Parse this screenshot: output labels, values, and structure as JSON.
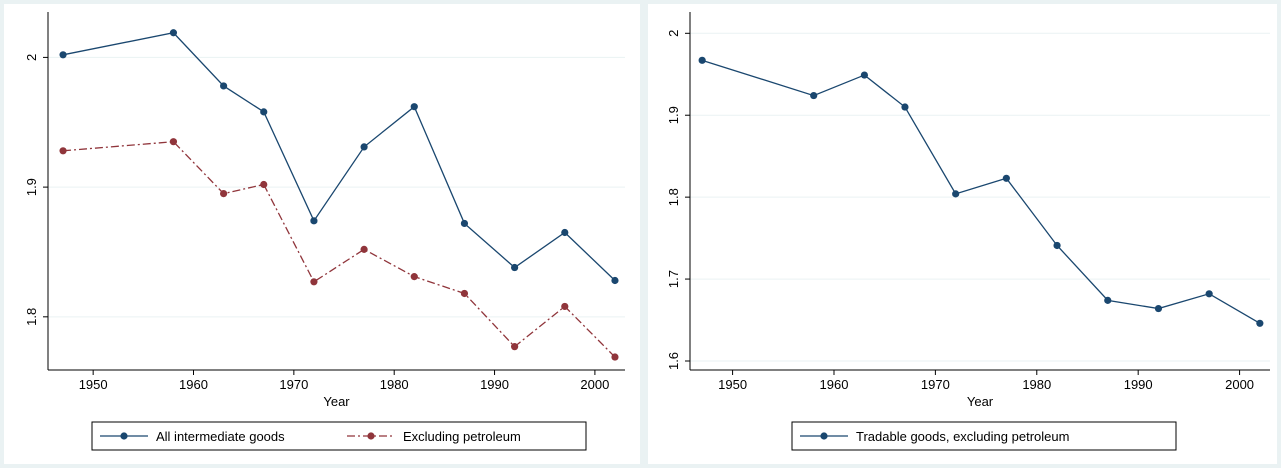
{
  "chart_data": [
    {
      "type": "line",
      "x_label": "Year",
      "x": [
        1947,
        1958,
        1963,
        1967,
        1972,
        1977,
        1982,
        1987,
        1992,
        1997,
        2002
      ],
      "series": [
        {
          "name": "All intermediate goods",
          "color": "#1a476f",
          "values": [
            2.002,
            2.019,
            1.978,
            1.958,
            1.874,
            1.931,
            1.962,
            1.872,
            1.838,
            1.865,
            1.828
          ]
        },
        {
          "name": "Excluding petroleum",
          "color": "#90353b",
          "values": [
            1.928,
            1.935,
            1.895,
            1.902,
            1.827,
            1.852,
            1.831,
            1.818,
            1.777,
            1.808,
            1.769
          ]
        }
      ],
      "xlim": [
        1945.5,
        2003
      ],
      "xticks": [
        1950,
        1960,
        1970,
        1980,
        1990,
        2000
      ],
      "ylim": [
        1.759,
        2.035
      ],
      "yticks": [
        1.8,
        1.9,
        2
      ],
      "grid": true,
      "legend": "bottom"
    },
    {
      "type": "line",
      "x_label": "Year",
      "x": [
        1947,
        1958,
        1963,
        1967,
        1972,
        1977,
        1982,
        1987,
        1992,
        1997,
        2002
      ],
      "series": [
        {
          "name": "Tradable goods, excluding petroleum",
          "color": "#1a476f",
          "values": [
            1.967,
            1.924,
            1.949,
            1.91,
            1.804,
            1.823,
            1.741,
            1.674,
            1.664,
            1.682,
            1.646
          ]
        }
      ],
      "xlim": [
        1945.8,
        2003
      ],
      "xticks": [
        1950,
        1960,
        1970,
        1980,
        1990,
        2000
      ],
      "ylim": [
        1.589,
        2.026
      ],
      "yticks": [
        1.6,
        1.7,
        1.8,
        1.9,
        2
      ],
      "grid": true,
      "legend": "bottom"
    }
  ]
}
